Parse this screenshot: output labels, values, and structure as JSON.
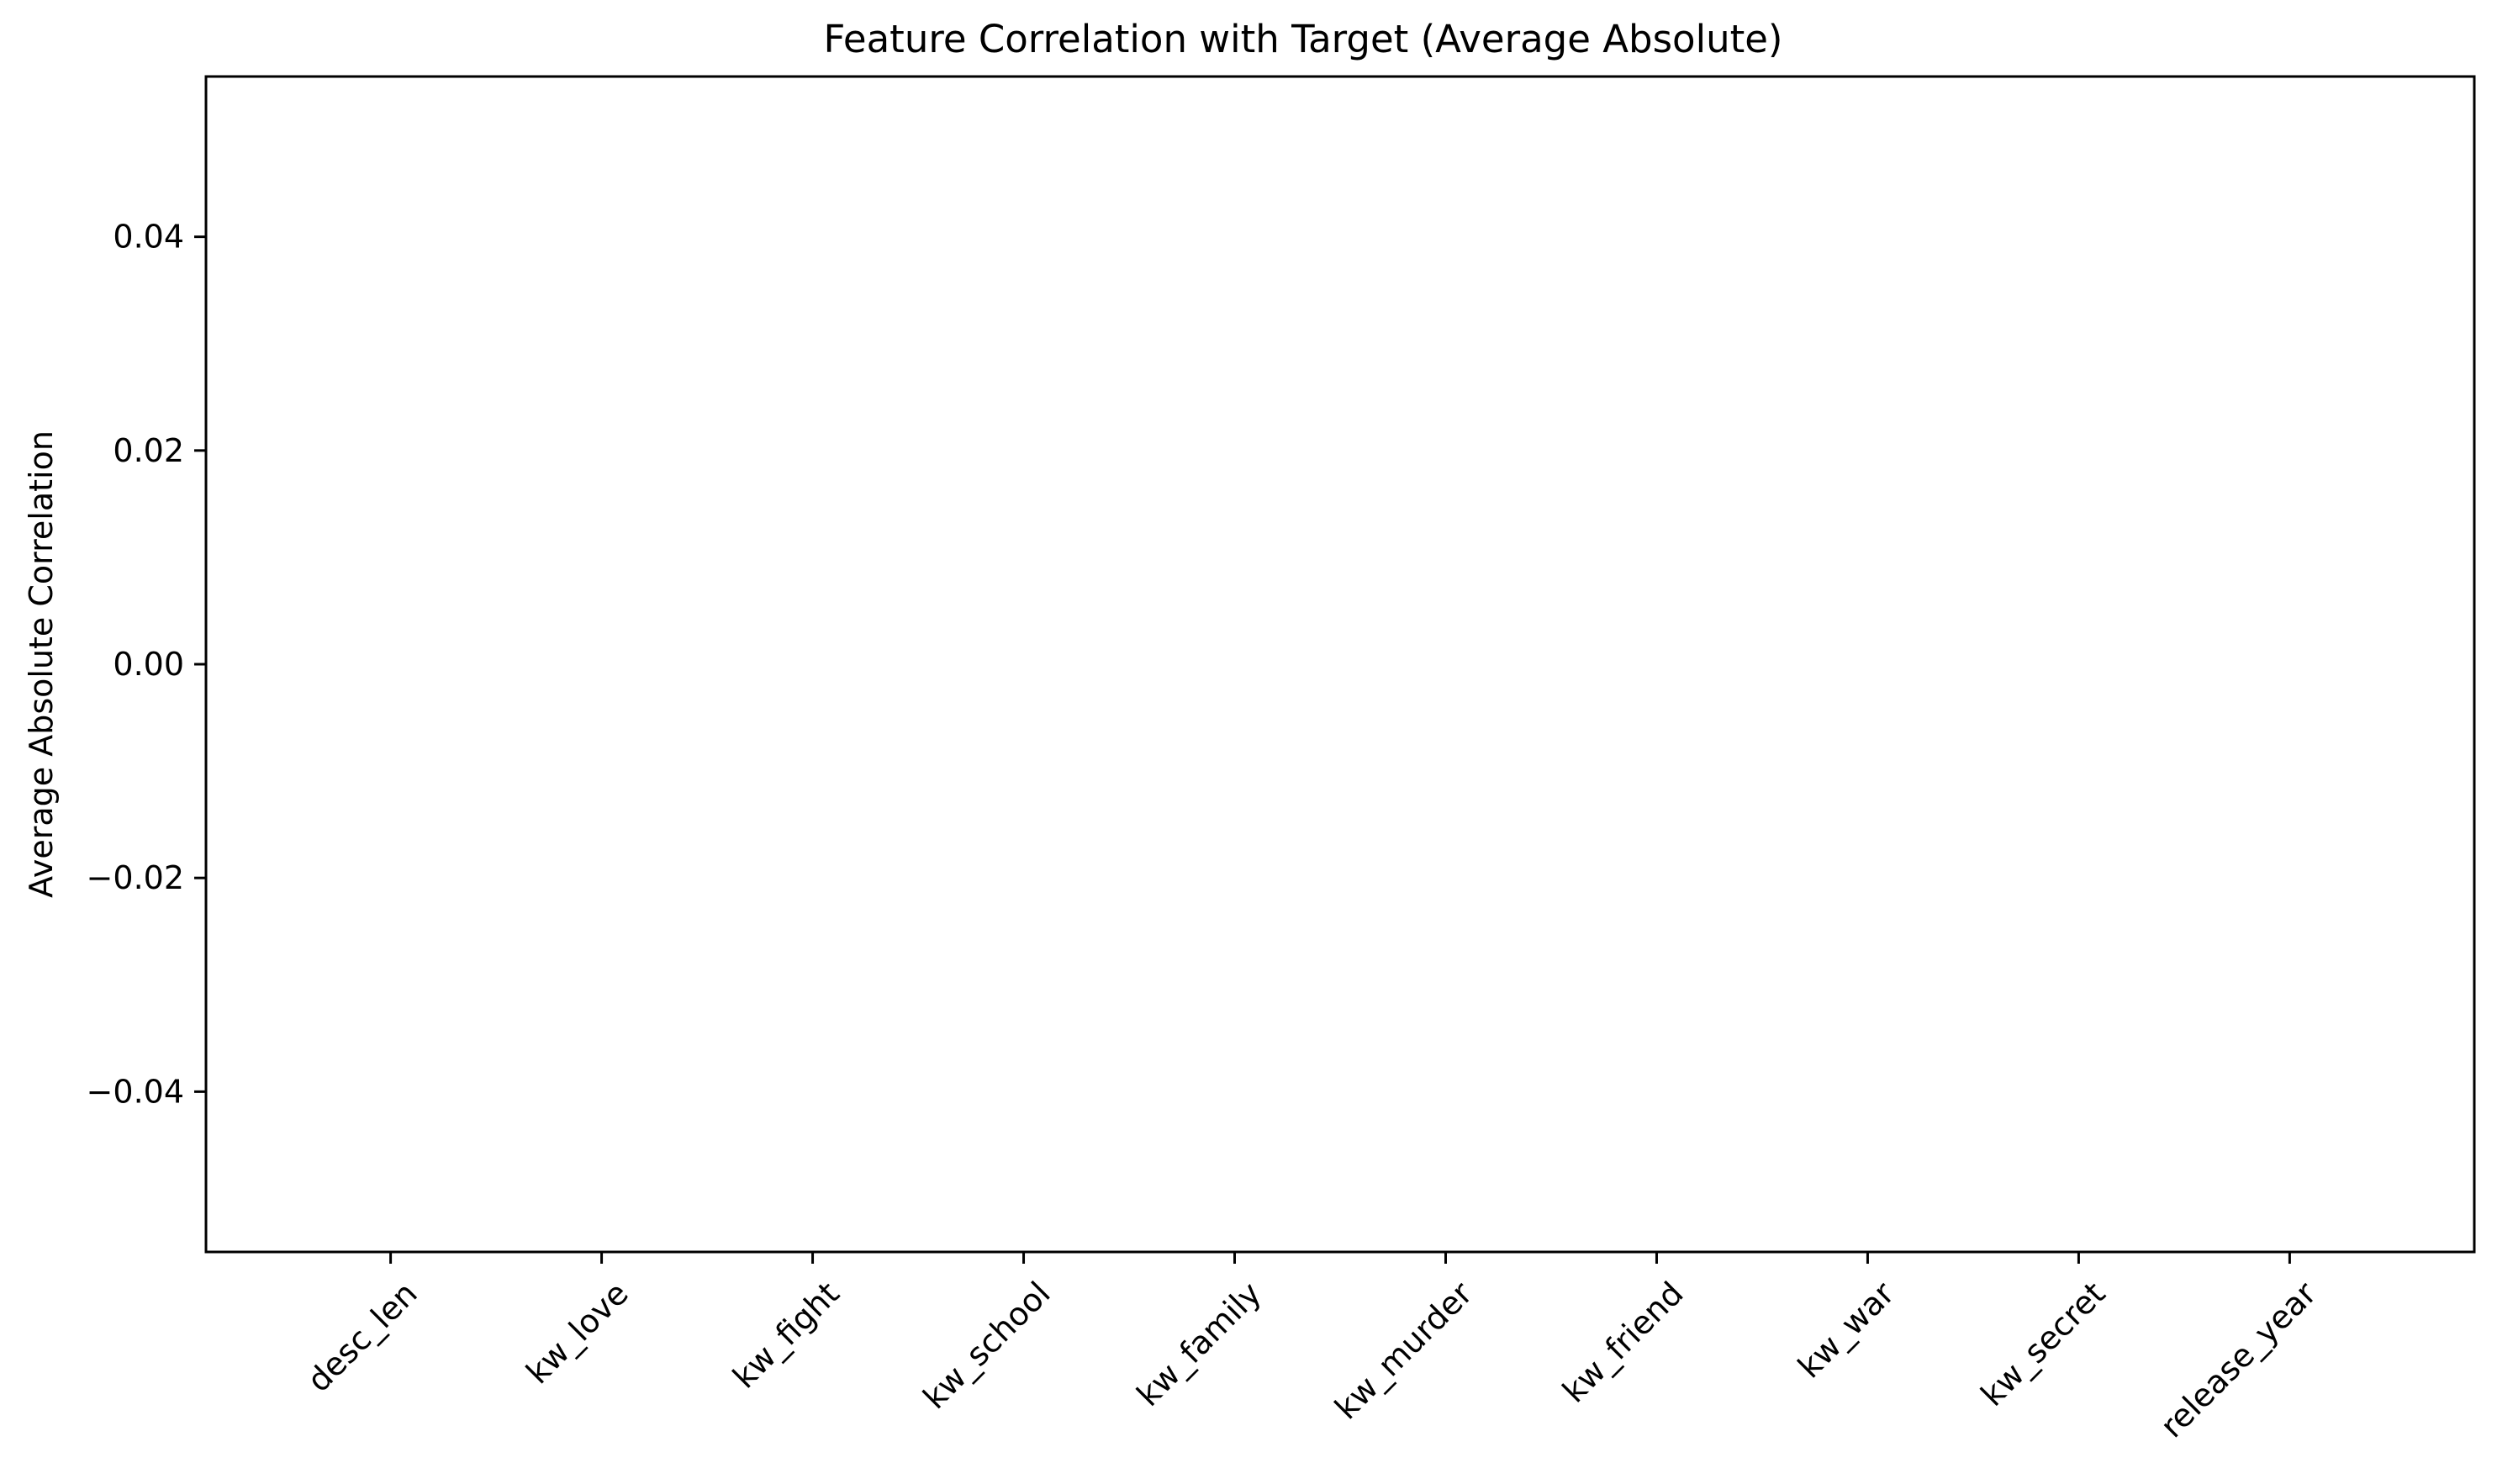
{
  "chart_data": {
    "type": "bar",
    "title": "Feature Correlation with Target (Average Absolute)",
    "xlabel": "",
    "ylabel": "Average Absolute Correlation",
    "categories": [
      "desc_len",
      "kw_love",
      "kw_fight",
      "kw_school",
      "kw_family",
      "kw_murder",
      "kw_friend",
      "kw_war",
      "kw_secret",
      "release_year"
    ],
    "values": [
      0,
      0,
      0,
      0,
      0,
      0,
      0,
      0,
      0,
      0
    ],
    "ylim": [
      -0.055,
      0.055
    ],
    "yticks": [
      -0.04,
      -0.02,
      0.0,
      0.02,
      0.04
    ],
    "ytick_labels": [
      "−0.04",
      "−0.02",
      "0.00",
      "0.02",
      "0.04"
    ],
    "xtick_rotation": 45,
    "grid": false,
    "legend": "none",
    "colors": {
      "axis": "#000000",
      "background": "#ffffff",
      "bar": "#1f77b4"
    }
  }
}
